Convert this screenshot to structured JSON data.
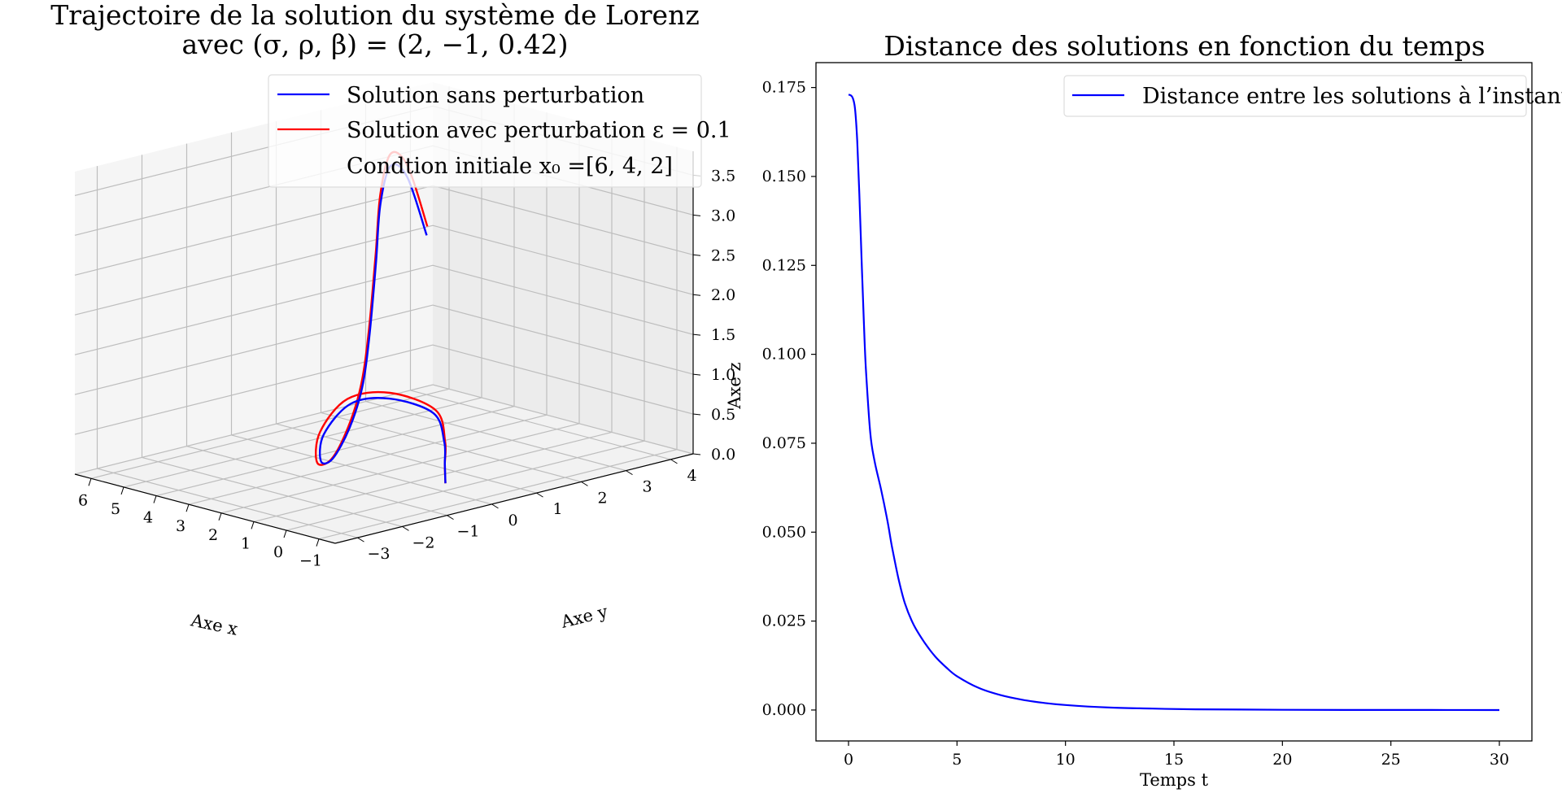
{
  "colors": {
    "blue": "#0000ff",
    "red": "#ff0000",
    "text": "#000000"
  },
  "chart_data": [
    {
      "type": "line3d",
      "title_line1": "Trajectoire de la solution du système de Lorenz",
      "title_line2": "avec (σ, ρ, β) = (2, −1, 0.42)",
      "xlabel": "Axe x",
      "ylabel": "Axe y",
      "zlabel": "Axe z",
      "x_ticks": [
        "−1",
        "0",
        "1",
        "2",
        "3",
        "4",
        "5",
        "6"
      ],
      "y_ticks": [
        "−3",
        "−2",
        "−1",
        "0",
        "1",
        "2",
        "3",
        "4"
      ],
      "z_ticks": [
        "0.0",
        "0.5",
        "1.0",
        "1.5",
        "2.0",
        "2.5",
        "3.0",
        "3.5"
      ],
      "xlim": [
        -1.5,
        6.5
      ],
      "ylim": [
        -3.5,
        4.5
      ],
      "zlim": [
        0,
        3.8
      ],
      "grid": true,
      "legend_position": "top-right",
      "legend": [
        {
          "label": "Solution sans perturbation",
          "color": "#0000ff"
        },
        {
          "label": "Solution avec perturbation ε = 0.1",
          "color": "#ff0000"
        },
        {
          "label": "Condtion initiale x₀ =[6, 4, 2]",
          "color": "none"
        }
      ],
      "series": [
        {
          "name": "Solution sans perturbation",
          "color": "#0000ff",
          "points": [
            [
              6,
              4,
              2
            ],
            [
              5.5,
              3.2,
              2.9
            ],
            [
              4.5,
              2.1,
              3.3
            ],
            [
              3.3,
              1.0,
              3.1
            ],
            [
              2.2,
              0.1,
              2.6
            ],
            [
              1.3,
              -0.7,
              1.9
            ],
            [
              0.7,
              -1.3,
              1.4
            ],
            [
              0.4,
              -1.8,
              1.0
            ],
            [
              0.5,
              -2.1,
              0.65
            ],
            [
              1.0,
              -2.0,
              0.55
            ],
            [
              1.6,
              -1.5,
              0.75
            ],
            [
              1.6,
              -0.9,
              1.05
            ],
            [
              1.1,
              -0.4,
              1.1
            ],
            [
              0.3,
              0.0,
              0.95
            ],
            [
              0.1,
              0.1,
              0.6
            ],
            [
              0.15,
              0.15,
              0.3
            ],
            [
              0.2,
              0.2,
              0.05
            ]
          ]
        },
        {
          "name": "Solution avec perturbation ε = 0.1",
          "color": "#ff0000",
          "points": [
            [
              6.05,
              4.05,
              2.1
            ],
            [
              5.55,
              3.25,
              3.02
            ],
            [
              4.52,
              2.12,
              3.45
            ],
            [
              3.3,
              1.0,
              3.23
            ],
            [
              2.18,
              0.08,
              2.72
            ],
            [
              1.25,
              -0.75,
              1.98
            ],
            [
              0.62,
              -1.38,
              1.46
            ],
            [
              0.3,
              -1.9,
              1.04
            ],
            [
              0.4,
              -2.2,
              0.67
            ],
            [
              0.98,
              -2.1,
              0.55
            ],
            [
              1.65,
              -1.55,
              0.78
            ],
            [
              1.7,
              -0.9,
              1.1
            ],
            [
              1.15,
              -0.35,
              1.16
            ],
            [
              0.3,
              0.05,
              0.98
            ],
            [
              0.1,
              0.12,
              0.6
            ],
            [
              0.15,
              0.15,
              0.3
            ],
            [
              0.2,
              0.2,
              0.05
            ]
          ]
        }
      ]
    },
    {
      "type": "line",
      "title": "Distance des solutions en fonction du temps",
      "xlabel": "Temps t",
      "ylabel": "",
      "xlim": [
        -1.5,
        31.5
      ],
      "ylim": [
        -0.0087,
        0.182
      ],
      "x_ticks": [
        0,
        5,
        10,
        15,
        20,
        25,
        30
      ],
      "x_tick_labels": [
        "0",
        "5",
        "10",
        "15",
        "20",
        "25",
        "30"
      ],
      "y_ticks": [
        0,
        0.025,
        0.05,
        0.075,
        0.1,
        0.125,
        0.15,
        0.175
      ],
      "y_tick_labels": [
        "0.000",
        "0.025",
        "0.050",
        "0.075",
        "0.100",
        "0.125",
        "0.150",
        "0.175"
      ],
      "grid": false,
      "legend_position": "top-right",
      "series": [
        {
          "name": "Distance entre les solutions à l’instant t",
          "color": "#0000ff",
          "x": [
            0,
            0.1,
            0.2,
            0.3,
            0.4,
            0.5,
            0.6,
            0.7,
            0.8,
            1.0,
            1.2,
            1.5,
            1.8,
            2.0,
            2.3,
            2.6,
            3.0,
            3.5,
            4.0,
            4.5,
            5.0,
            6.0,
            7.0,
            8.0,
            9.0,
            10.0,
            12.0,
            14.0,
            16.0,
            20.0,
            25.0,
            30.0
          ],
          "y": [
            0.173,
            0.1728,
            0.172,
            0.169,
            0.16,
            0.145,
            0.127,
            0.11,
            0.096,
            0.078,
            0.07,
            0.062,
            0.053,
            0.046,
            0.037,
            0.03,
            0.024,
            0.019,
            0.015,
            0.012,
            0.0095,
            0.0062,
            0.0042,
            0.0029,
            0.002,
            0.0014,
            0.0007,
            0.0004,
            0.0002,
            5e-05,
            1e-05,
            0.0
          ]
        }
      ]
    }
  ]
}
